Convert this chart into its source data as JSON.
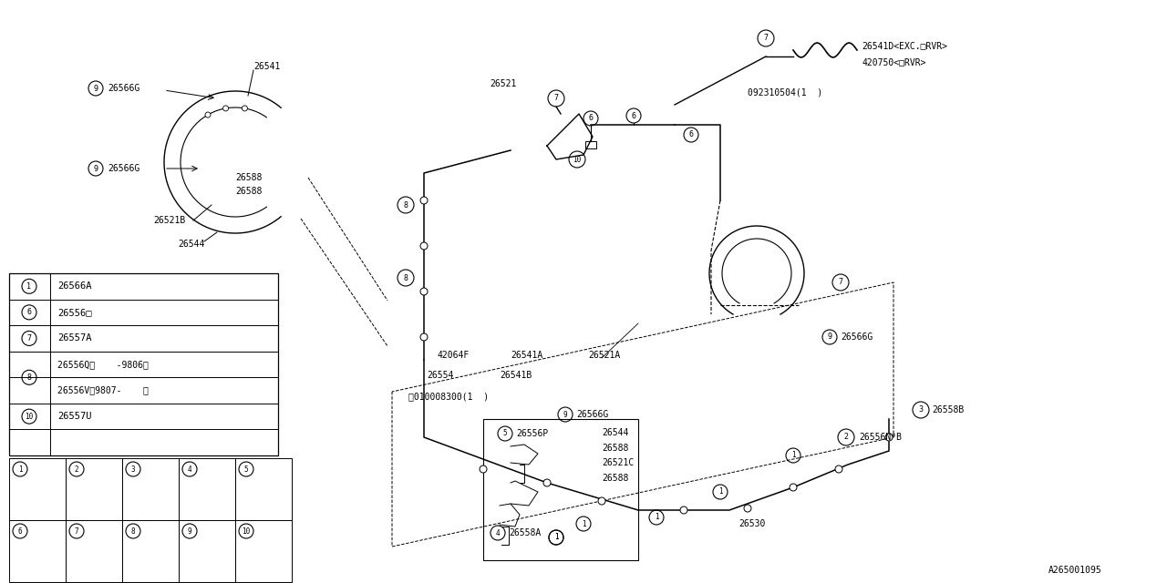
{
  "bg_color": "#ffffff",
  "line_color": "#000000",
  "font_color": "#000000",
  "subtitle": "A265001095",
  "legend_entries": [
    {
      "num": "1",
      "code": "26566A"
    },
    {
      "num": "6",
      "code": "26556□"
    },
    {
      "num": "7",
      "code": "26557A"
    },
    {
      "num": "8a",
      "code": "26556Q〈    -9806〉"
    },
    {
      "num": "8b",
      "code": "26556V〈9807-    〉"
    },
    {
      "num": "10",
      "code": "26557U"
    }
  ]
}
